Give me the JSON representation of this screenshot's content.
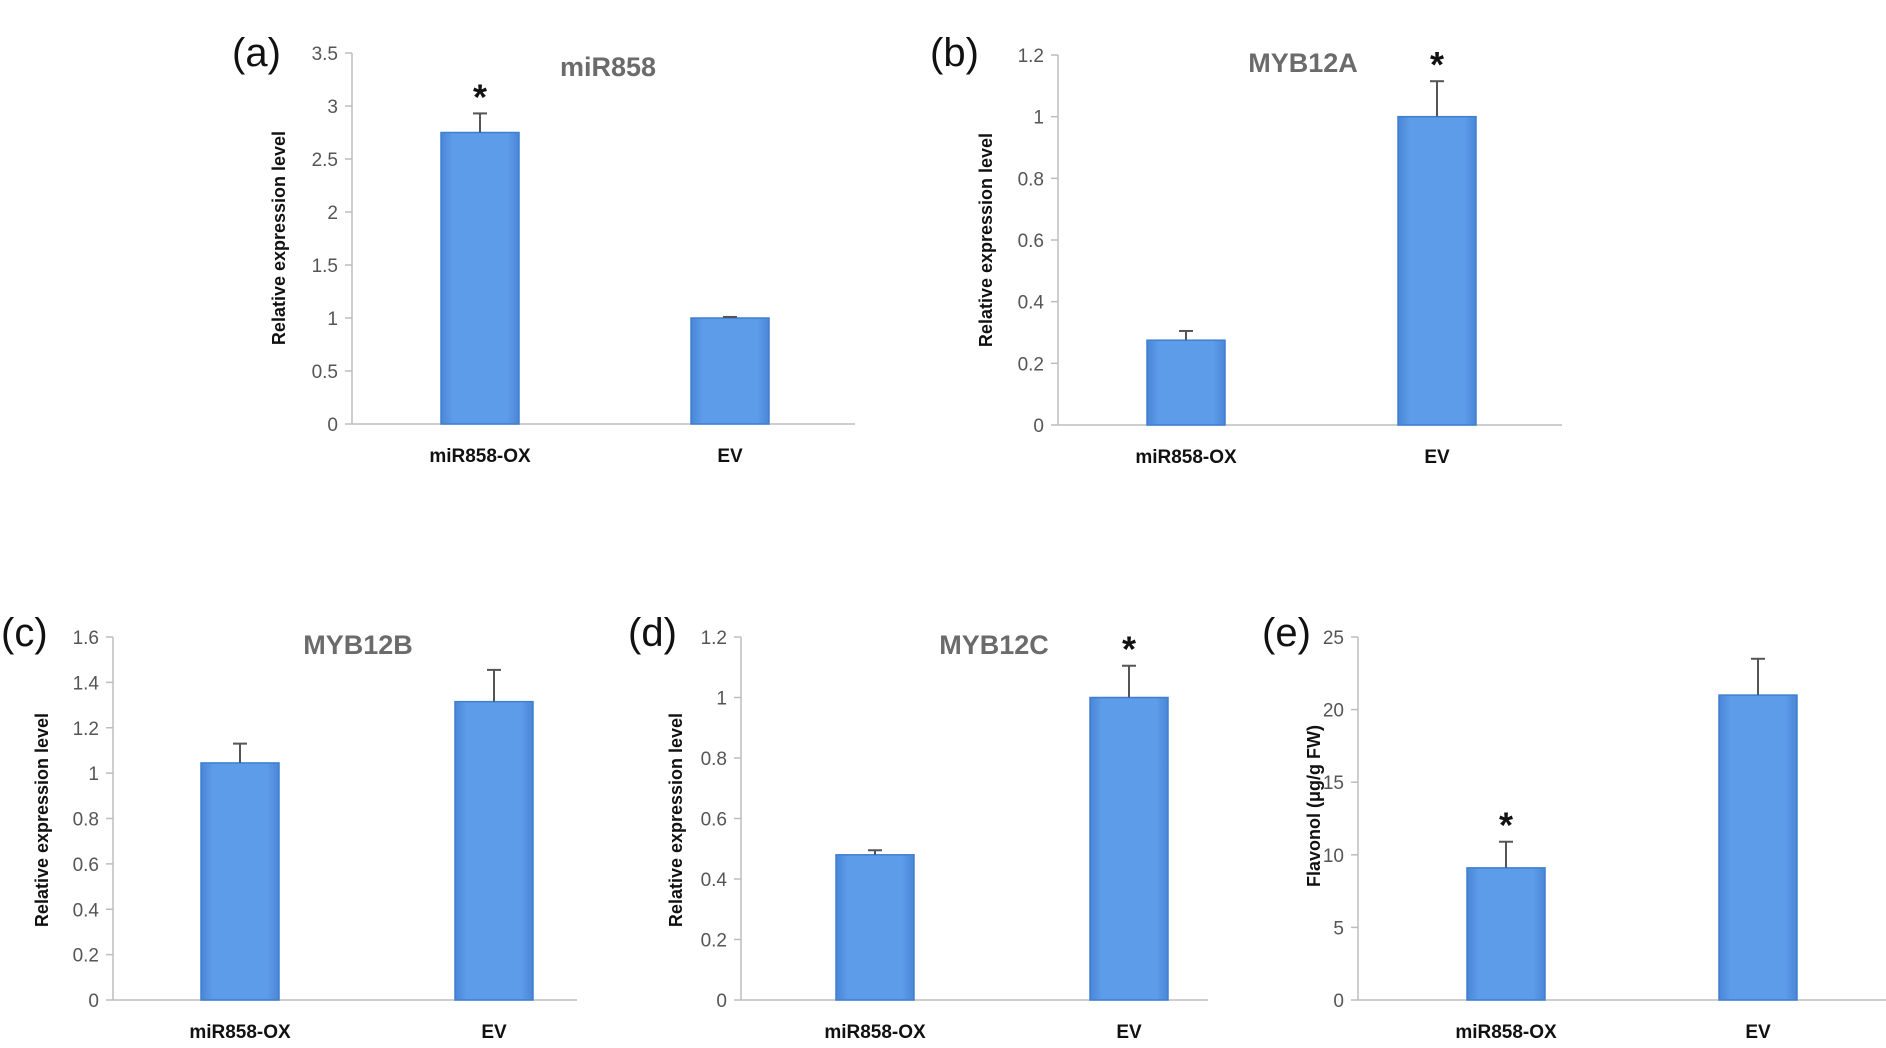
{
  "chart_data": [
    {
      "type": "bar",
      "panel": "(a)",
      "title": "miR858",
      "ylabel": "Relative expression level",
      "categories": [
        "miR858-OX",
        "EV"
      ],
      "values": [
        2.75,
        1.0
      ],
      "errors": [
        0.18,
        0.01
      ],
      "significance": [
        "*",
        ""
      ],
      "ylim": [
        0,
        3.5
      ],
      "yticks": [
        "0",
        "0.5",
        "1",
        "1.5",
        "2",
        "2.5",
        "3",
        "3.5"
      ],
      "bar_color": "#5b9be6"
    },
    {
      "type": "bar",
      "panel": "(b)",
      "title": "MYB12A",
      "ylabel": "Relative expression level",
      "categories": [
        "miR858-OX",
        "EV"
      ],
      "values": [
        0.275,
        1.0
      ],
      "errors": [
        0.03,
        0.115
      ],
      "significance": [
        "",
        "*"
      ],
      "ylim": [
        0,
        1.2
      ],
      "yticks": [
        "0",
        "0.2",
        "0.4",
        "0.6",
        "0.8",
        "1",
        "1.2"
      ],
      "bar_color": "#5b9be6"
    },
    {
      "type": "bar",
      "panel": "(c)",
      "title": "MYB12B",
      "ylabel": "Relative expression level",
      "categories": [
        "miR858-OX",
        "EV"
      ],
      "values": [
        1.045,
        1.315
      ],
      "errors": [
        0.085,
        0.14
      ],
      "significance": [
        "",
        ""
      ],
      "ylim": [
        0,
        1.6
      ],
      "yticks": [
        "0",
        "0.2",
        "0.4",
        "0.6",
        "0.8",
        "1",
        "1.2",
        "1.4",
        "1.6"
      ],
      "bar_color": "#5b9be6"
    },
    {
      "type": "bar",
      "panel": "(d)",
      "title": "MYB12C",
      "ylabel": "Relative expression level",
      "categories": [
        "miR858-OX",
        "EV"
      ],
      "values": [
        0.48,
        1.0
      ],
      "errors": [
        0.015,
        0.105
      ],
      "significance": [
        "",
        "*"
      ],
      "ylim": [
        0,
        1.2
      ],
      "yticks": [
        "0",
        "0.2",
        "0.4",
        "0.6",
        "0.8",
        "1",
        "1.2"
      ],
      "bar_color": "#5b9be6"
    },
    {
      "type": "bar",
      "panel": "(e)",
      "title": "",
      "ylabel": "Flavonol (μg/g FW)",
      "categories": [
        "miR858-OX",
        "EV"
      ],
      "values": [
        9.1,
        21.0
      ],
      "errors": [
        1.8,
        2.5
      ],
      "significance": [
        "*",
        ""
      ],
      "ylim": [
        0,
        25
      ],
      "yticks": [
        "0",
        "5",
        "10",
        "15",
        "20",
        "25"
      ],
      "bar_color": "#5b9be6"
    }
  ]
}
